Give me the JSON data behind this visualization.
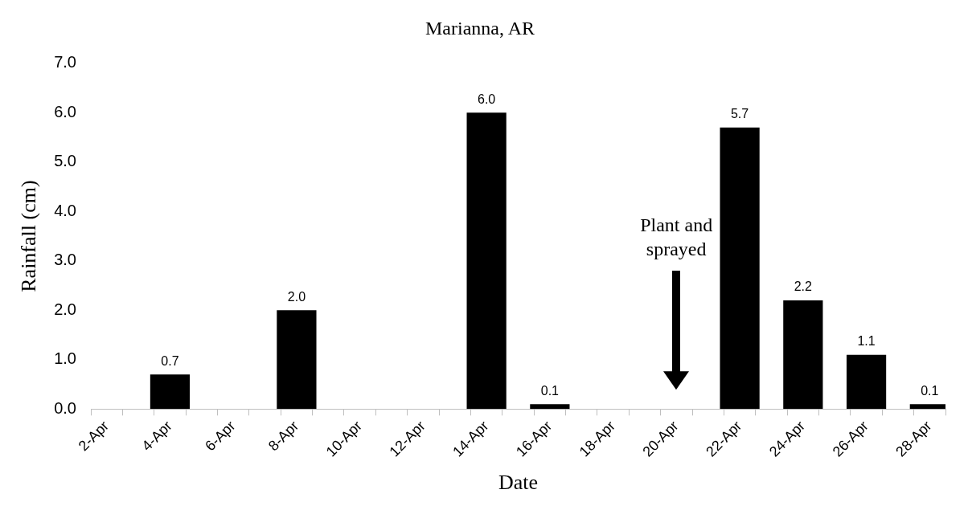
{
  "chart_data": {
    "type": "bar",
    "title": "Marianna, AR",
    "xlabel": "Date",
    "ylabel": "Rainfall (cm)",
    "categories": [
      "2-Apr",
      null,
      "4-Apr",
      null,
      "6-Apr",
      null,
      "8-Apr",
      null,
      "10-Apr",
      null,
      "12-Apr",
      null,
      "14-Apr",
      null,
      "16-Apr",
      null,
      "18-Apr",
      null,
      "20-Apr",
      null,
      "22-Apr",
      null,
      "24-Apr",
      null,
      "26-Apr",
      null,
      "28-Apr"
    ],
    "values": [
      null,
      null,
      0.7,
      null,
      null,
      null,
      2.0,
      null,
      null,
      null,
      null,
      null,
      6.0,
      null,
      0.1,
      null,
      null,
      null,
      null,
      null,
      5.7,
      null,
      2.2,
      null,
      1.1,
      null,
      0.1
    ],
    "value_labels": [
      null,
      null,
      "0.7",
      null,
      null,
      null,
      "2.0",
      null,
      null,
      null,
      null,
      null,
      "6.0",
      null,
      "0.1",
      null,
      null,
      null,
      null,
      null,
      "5.7",
      null,
      "2.2",
      null,
      "1.1",
      null,
      "0.1"
    ],
    "color": "#000000",
    "ylim": [
      0,
      7
    ],
    "yticks": [
      {
        "value": 0,
        "label": "0.0"
      },
      {
        "value": 1,
        "label": "1.0"
      },
      {
        "value": 2,
        "label": "2.0"
      },
      {
        "value": 3,
        "label": "3.0"
      },
      {
        "value": 4,
        "label": "4.0"
      },
      {
        "value": 5,
        "label": "5.0"
      },
      {
        "value": 6,
        "label": "6.0"
      },
      {
        "value": 7,
        "label": "7.0"
      }
    ],
    "annotations": [
      "Plant and sprayed"
    ],
    "grid": false,
    "legend": false
  }
}
